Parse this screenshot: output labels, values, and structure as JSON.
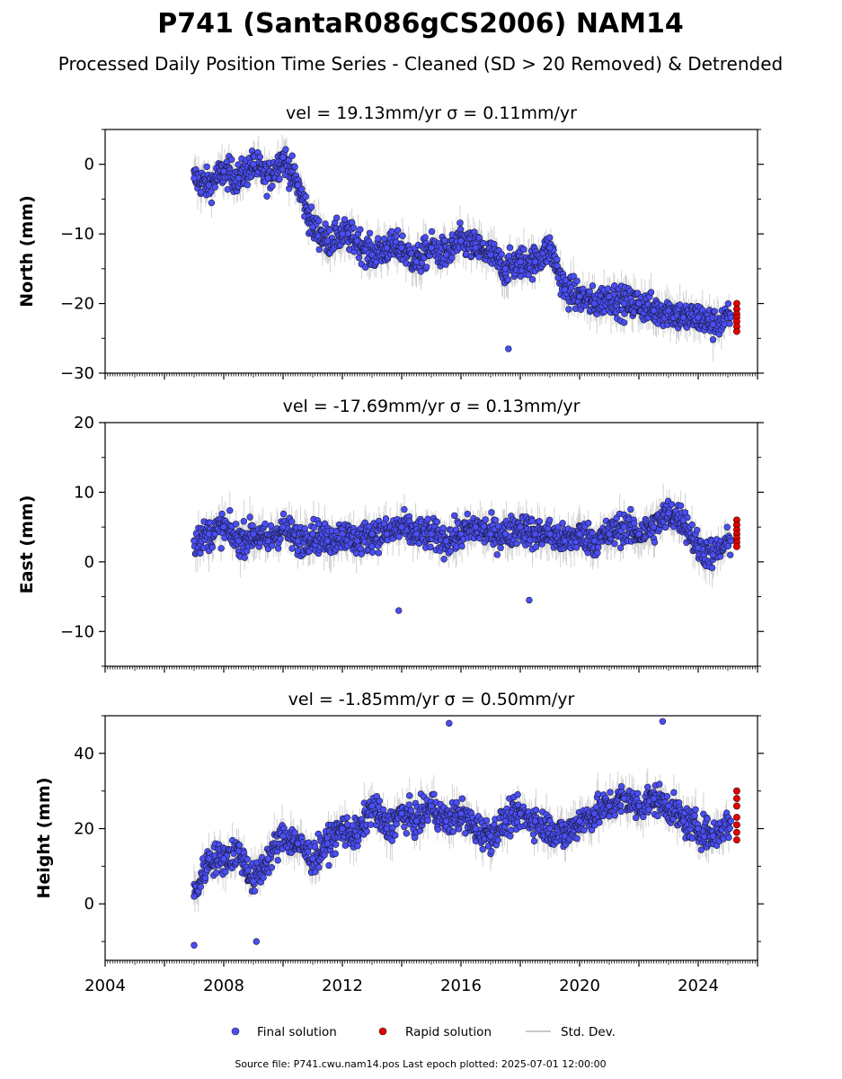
{
  "header": {
    "title": "P741 (SantaR086gCS2006) NAM14",
    "subtitle": "Processed Daily Position Time Series - Cleaned (SD > 20 Removed) & Detrended"
  },
  "legend": [
    {
      "key": "final",
      "label": "Final solution",
      "color": "#4a4ef5"
    },
    {
      "key": "rapid",
      "label": "Rapid solution",
      "color": "#e60000"
    },
    {
      "key": "std",
      "label": "Std. Dev.",
      "color": "#c8c8c8"
    }
  ],
  "footer": "Source file: P741.cwu.nam14.pos  Last epoch plotted: 2025-07-01 12:00:00",
  "chart_data": [
    {
      "type": "scatter",
      "title": "vel = 19.13mm/yr   σ = 0.11mm/yr",
      "ylabel": "North (mm)",
      "xlim": [
        2004,
        2026
      ],
      "ylim": [
        -30,
        5
      ],
      "yticks": [
        0,
        -10,
        -20,
        -30
      ],
      "ytick_labels": [
        "0",
        "−10",
        "−20",
        "−30"
      ],
      "series": [
        {
          "key": "final",
          "x": [
            2007.0,
            2007.5,
            2008.0,
            2008.5,
            2009.0,
            2009.5,
            2010.0,
            2010.5,
            2011.0,
            2011.5,
            2012.0,
            2012.5,
            2013.0,
            2013.5,
            2014.0,
            2014.5,
            2015.0,
            2015.5,
            2016.0,
            2016.5,
            2017.0,
            2017.5,
            2018.0,
            2018.5,
            2019.0,
            2019.5,
            2020.0,
            2020.5,
            2021.0,
            2021.5,
            2022.0,
            2022.5,
            2023.0,
            2023.5,
            2024.0,
            2024.5,
            2025.1
          ],
          "y": [
            -2,
            -3,
            -1,
            -2,
            0,
            -2,
            1,
            -3,
            -9,
            -11,
            -10,
            -11,
            -13,
            -12,
            -12,
            -14,
            -12,
            -13,
            -11,
            -12,
            -13,
            -15,
            -14,
            -14,
            -12,
            -18,
            -19,
            -20,
            -19,
            -20,
            -20,
            -21,
            -21,
            -22,
            -22,
            -23,
            -22
          ]
        },
        {
          "key": "rapid",
          "x": [
            2025.3,
            2025.3,
            2025.3,
            2025.3,
            2025.3,
            2025.3,
            2025.3
          ],
          "y": [
            -20,
            -20.8,
            -21.5,
            -22,
            -22.6,
            -23.3,
            -24
          ]
        }
      ],
      "outliers": {
        "x": [
          2017.6
        ],
        "y": [
          -26.5
        ]
      }
    },
    {
      "type": "scatter",
      "title": "vel = -17.69mm/yr   σ = 0.13mm/yr",
      "ylabel": "East (mm)",
      "xlim": [
        2004,
        2026
      ],
      "ylim": [
        -15,
        20
      ],
      "yticks": [
        20,
        10,
        0,
        -10
      ],
      "ytick_labels": [
        "20",
        "10",
        "0",
        "−10"
      ],
      "series": [
        {
          "key": "final",
          "x": [
            2007.0,
            2007.5,
            2008.0,
            2008.5,
            2009.0,
            2009.5,
            2010.0,
            2010.5,
            2011.0,
            2011.5,
            2012.0,
            2012.5,
            2013.0,
            2013.5,
            2014.0,
            2014.5,
            2015.0,
            2015.5,
            2016.0,
            2016.5,
            2017.0,
            2017.5,
            2018.0,
            2018.5,
            2019.0,
            2019.5,
            2020.0,
            2020.5,
            2021.0,
            2021.5,
            2022.0,
            2022.5,
            2023.0,
            2023.5,
            2024.0,
            2024.5,
            2025.1
          ],
          "y": [
            3,
            4,
            5,
            3,
            4,
            3,
            5,
            3,
            4,
            3,
            4,
            3,
            4,
            4,
            5,
            4,
            4,
            3,
            4,
            5,
            4,
            4,
            5,
            4,
            4,
            3,
            4,
            3,
            4,
            5,
            4,
            5,
            7,
            6,
            2,
            1,
            3
          ]
        },
        {
          "key": "rapid",
          "x": [
            2025.3,
            2025.3,
            2025.3,
            2025.3,
            2025.3,
            2025.3,
            2025.3
          ],
          "y": [
            6,
            5.3,
            4.6,
            4,
            3.4,
            2.8,
            2.2
          ]
        }
      ],
      "outliers": {
        "x": [
          2013.9,
          2018.3
        ],
        "y": [
          -7,
          -5.5
        ]
      }
    },
    {
      "type": "scatter",
      "title": "vel = -1.85mm/yr   σ = 0.50mm/yr",
      "ylabel": "Height (mm)",
      "xlim": [
        2004,
        2026
      ],
      "ylim": [
        -15,
        50
      ],
      "yticks": [
        40,
        20,
        0
      ],
      "ytick_labels": [
        "40",
        "20",
        "0"
      ],
      "xticks": [
        2004,
        2008,
        2012,
        2016,
        2020,
        2024
      ],
      "xtick_labels": [
        "2004",
        "2008",
        "2012",
        "2016",
        "2020",
        "2024"
      ],
      "series": [
        {
          "key": "final",
          "x": [
            2007.0,
            2007.5,
            2008.0,
            2008.5,
            2009.0,
            2009.5,
            2010.0,
            2010.5,
            2011.0,
            2011.5,
            2012.0,
            2012.5,
            2013.0,
            2013.5,
            2014.0,
            2014.5,
            2015.0,
            2015.5,
            2016.0,
            2016.5,
            2017.0,
            2017.5,
            2018.0,
            2018.5,
            2019.0,
            2019.5,
            2020.0,
            2020.5,
            2021.0,
            2021.5,
            2022.0,
            2022.5,
            2023.0,
            2023.5,
            2024.0,
            2024.5,
            2025.1
          ],
          "y": [
            2,
            12,
            12,
            14,
            6,
            12,
            18,
            16,
            12,
            16,
            20,
            18,
            26,
            20,
            24,
            22,
            26,
            22,
            24,
            20,
            18,
            22,
            24,
            22,
            20,
            18,
            22,
            24,
            26,
            28,
            26,
            28,
            26,
            22,
            20,
            18,
            22
          ]
        },
        {
          "key": "rapid",
          "x": [
            2025.3,
            2025.3,
            2025.3,
            2025.3,
            2025.3,
            2025.3,
            2025.3
          ],
          "y": [
            30,
            28,
            26,
            23,
            21,
            19,
            17
          ]
        }
      ],
      "outliers": {
        "x": [
          2007.0,
          2009.1,
          2015.6,
          2022.8
        ],
        "y": [
          -11,
          -10,
          48,
          48.5
        ]
      }
    }
  ]
}
